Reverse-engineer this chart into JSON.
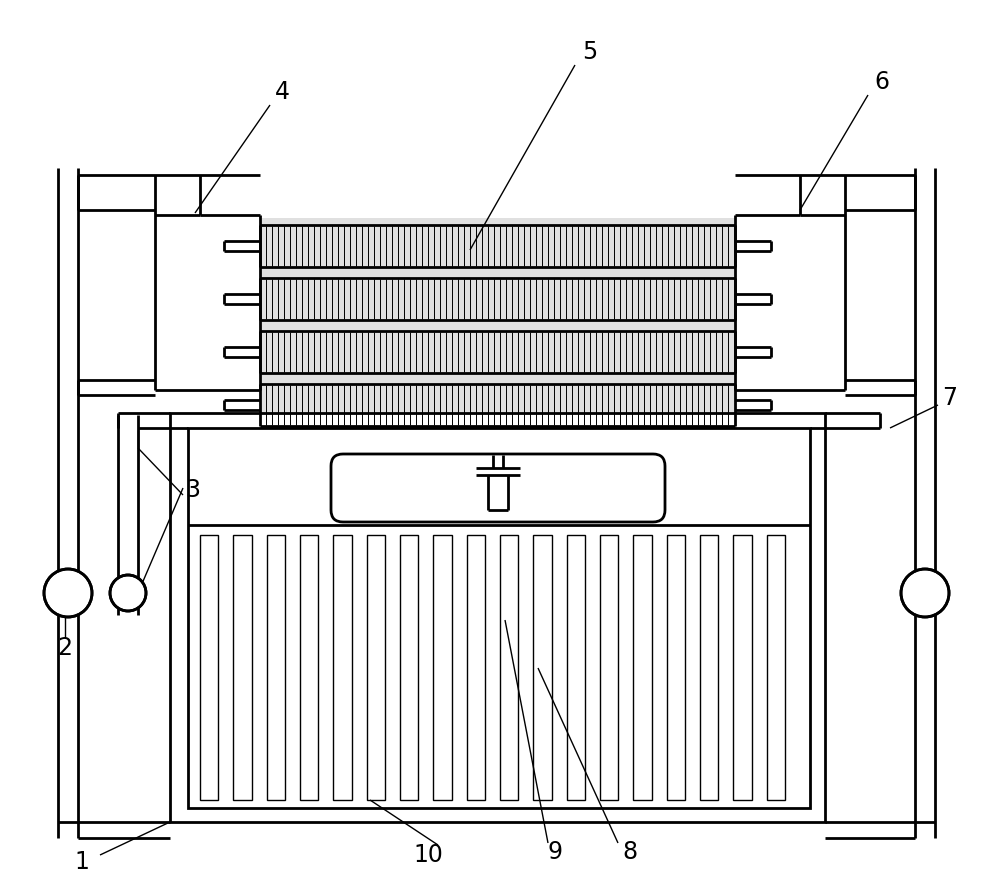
{
  "bg_color": "#ffffff",
  "line_color": "#000000",
  "lw": 2.0,
  "lw_thin": 1.0,
  "lw_fin": 0.7,
  "label_fontsize": 17,
  "fig_width": 10.0,
  "fig_height": 8.93
}
